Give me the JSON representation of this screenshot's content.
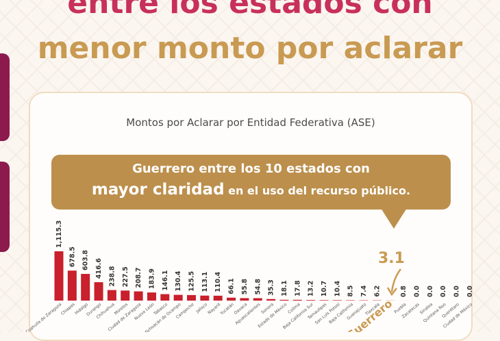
{
  "header": {
    "title_line1": "entre los estados con",
    "title_line2": "menor monto por aclarar"
  },
  "banner": {
    "line1": "Guerrero entre los 10 estados con",
    "line2_emphasis": "mayor claridad",
    "line2_rest": " en el uso del recurso público."
  },
  "callout": "3.1",
  "colors": {
    "bar": "#c8202c",
    "accent": "#c99a52",
    "magenta": "#c8305c",
    "banner": "#bc8f4c"
  },
  "chart_data": {
    "type": "bar",
    "title": "Montos por Aclarar por Entidad Federativa (ASE)",
    "categories": [
      "Coahuila de Zaragoza",
      "Chiapas",
      "Hidalgo",
      "Durango",
      "Chihuahua",
      "Morelos",
      "Ciudad de Zaragoza",
      "Nuevo León",
      "Tabasco",
      "Michoacán de Ocampo",
      "Campeche",
      "Jalisco",
      "Nayarit",
      "Yucatán",
      "Oaxaca",
      "Aguascalientes",
      "Sonora",
      "Estado de México",
      "Colima",
      "Baja California Sur",
      "Tamaulipas",
      "San Luis Potosí",
      "Baja California",
      "Guanajuato",
      "Tlaxcala",
      "Guerrero",
      "Puebla",
      "Zacatecas",
      "Sinaloa",
      "Quintana Roo",
      "Querétaro",
      "Ciudad de México"
    ],
    "values": [
      1115.3,
      678.5,
      603.8,
      416.6,
      238.8,
      227.5,
      208.7,
      183.9,
      146.1,
      130.4,
      125.5,
      113.1,
      110.4,
      66.1,
      55.8,
      54.8,
      35.3,
      18.1,
      17.8,
      13.2,
      10.7,
      10.4,
      8.5,
      7.4,
      6.2,
      3.1,
      0.8,
      0.0,
      0.0,
      0.0,
      0.0,
      0.0
    ],
    "value_labels": [
      "1,115.3",
      "678.5",
      "603.8",
      "416.6",
      "238.8",
      "227.5",
      "208.7",
      "183.9",
      "146.1",
      "130.4",
      "125.5",
      "113.1",
      "110.4",
      "66.1",
      "55.8",
      "54.8",
      "35.3",
      "18.1",
      "17.8",
      "13.2",
      "10.7",
      "10.4",
      "8.5",
      "7.4",
      "6.2",
      "",
      "0.8",
      "0.0",
      "0.0",
      "0.0",
      "0.0",
      "0.0"
    ],
    "highlight_category": "Guerrero"
  }
}
